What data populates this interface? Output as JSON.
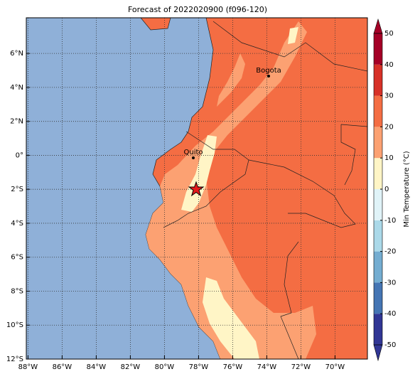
{
  "title": "Forecast of 2022020900 (f096-120)",
  "map": {
    "xlim": [
      -88.1,
      -68.1
    ],
    "ylim": [
      -12,
      8.1
    ],
    "xticks": [
      {
        "value": -88,
        "label": "88°W"
      },
      {
        "value": -86,
        "label": "86°W"
      },
      {
        "value": -84,
        "label": "84°W"
      },
      {
        "value": -82,
        "label": "82°W"
      },
      {
        "value": -80,
        "label": "80°W"
      },
      {
        "value": -78,
        "label": "78°W"
      },
      {
        "value": -76,
        "label": "76°W"
      },
      {
        "value": -74,
        "label": "74°W"
      },
      {
        "value": -72,
        "label": "72°W"
      },
      {
        "value": -70,
        "label": "70°W"
      }
    ],
    "yticks": [
      {
        "value": -12,
        "label": "12°S"
      },
      {
        "value": -10,
        "label": "10°S"
      },
      {
        "value": -8,
        "label": "8°S"
      },
      {
        "value": -6,
        "label": "6°S"
      },
      {
        "value": -4,
        "label": "4°S"
      },
      {
        "value": -2,
        "label": "2°S"
      },
      {
        "value": 0,
        "label": "0°"
      },
      {
        "value": 2,
        "label": "2°N"
      },
      {
        "value": 4,
        "label": "4°N"
      },
      {
        "value": 6,
        "label": "6°N"
      }
    ],
    "grid": true,
    "cities": [
      "Bogota",
      "Quito"
    ]
  },
  "colorbar": {
    "label": "Min Temperature (°C)",
    "lim": [
      -50,
      50
    ],
    "ticks": [
      -50,
      -40,
      -30,
      -20,
      -10,
      0,
      10,
      20,
      30,
      40,
      50
    ],
    "colors": [
      "#313695",
      "#4575b4",
      "#74add1",
      "#abd9e9",
      "#e0f3f8",
      "#fff5c6",
      "#fca172",
      "#f46d43",
      "#d73027",
      "#a50026"
    ]
  }
}
